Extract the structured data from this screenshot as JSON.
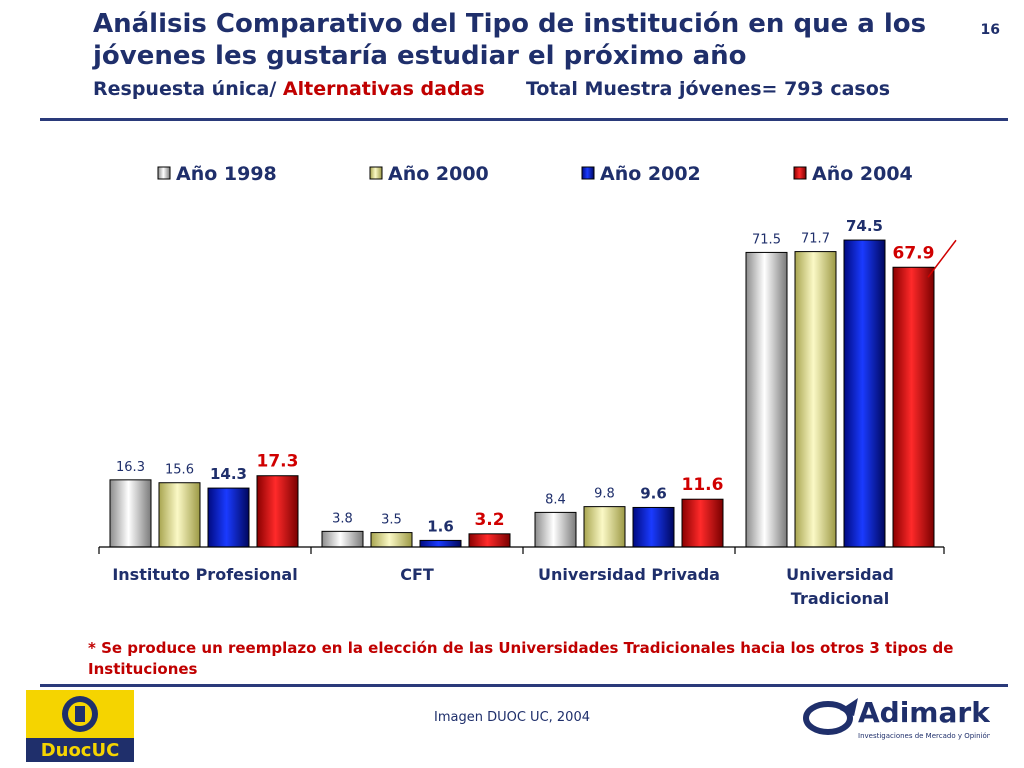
{
  "header": {
    "title": "Análisis Comparativo del Tipo de institución en que a los jóvenes les gustaría estudiar el próximo año",
    "subtitle_left": "Respuesta única/",
    "subtitle_red": "Alternativas dadas",
    "subtitle_right": "Total Muestra jóvenes= 793 casos",
    "page_number": "16"
  },
  "chart_data": {
    "type": "bar",
    "categories": [
      "Instituto Profesional",
      "CFT",
      "Universidad Privada",
      "Universidad Tradicional"
    ],
    "series": [
      {
        "name": "Año 1998",
        "values": [
          16.3,
          3.8,
          8.4,
          71.5
        ],
        "labels": [
          "16.3",
          "3.8",
          "8.4",
          "71.5"
        ],
        "color": "#d9d9d9"
      },
      {
        "name": "Año 2000",
        "values": [
          15.6,
          3.5,
          9.8,
          71.7
        ],
        "labels": [
          "15.6",
          "3.5",
          "9.8",
          "71.7"
        ],
        "color": "#f0eea0"
      },
      {
        "name": "Año 2002",
        "values": [
          14.3,
          1.6,
          9.6,
          74.5
        ],
        "labels": [
          "14.3",
          "1.6",
          "9.6",
          "74.5"
        ],
        "color": "#0a1fd6"
      },
      {
        "name": "Año 2004",
        "values": [
          17.3,
          3.2,
          11.6,
          67.9
        ],
        "labels": [
          "17.3",
          "3.2",
          "11.6",
          "67.9"
        ],
        "color": "#e01010"
      }
    ],
    "ylim": [
      0,
      75
    ],
    "grid": false,
    "legend_position": "top"
  },
  "note": "* Se produce un reemplazo en la elección de las Universidades Tradicionales hacia los otros 3 tipos de Instituciones",
  "footer": {
    "credit": "Imagen DUOC UC, 2004",
    "logo_left_text": "DuocUC",
    "logo_right_text": "Adimark",
    "logo_right_tagline": "Investigaciones de Mercado y Opinión Pública"
  }
}
